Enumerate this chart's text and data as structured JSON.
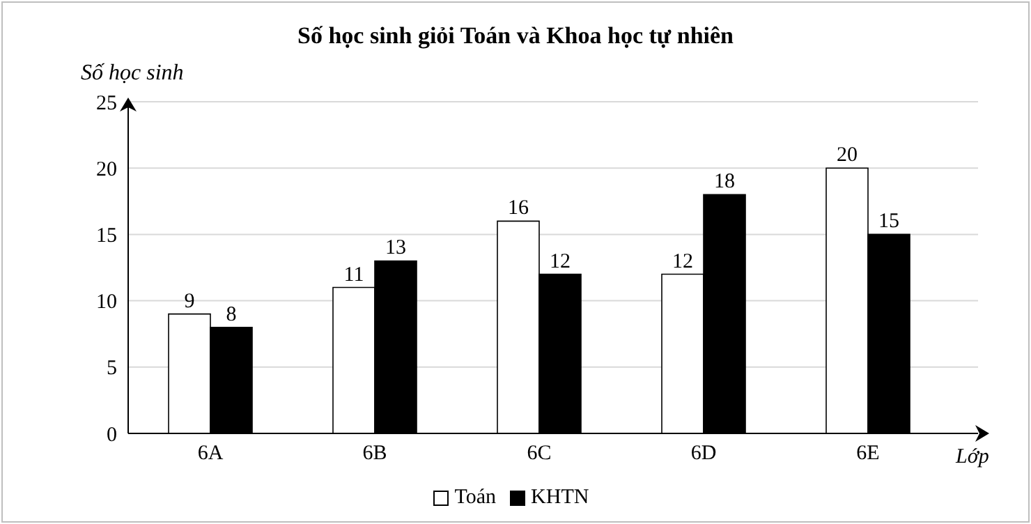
{
  "chart_data": {
    "type": "bar",
    "title": "Số học sinh giỏi Toán và Khoa học tự nhiên",
    "xlabel": "Lớp",
    "ylabel": "Số học sinh",
    "categories": [
      "6A",
      "6B",
      "6C",
      "6D",
      "6E"
    ],
    "series": [
      {
        "name": "Toán",
        "color": "#ffffff",
        "values": [
          9,
          11,
          16,
          12,
          20
        ]
      },
      {
        "name": "KHTN",
        "color": "#000000",
        "values": [
          8,
          13,
          12,
          18,
          15
        ]
      }
    ],
    "ylim": [
      0,
      25
    ],
    "yticks": [
      0,
      5,
      10,
      15,
      20,
      25
    ],
    "grid": "y",
    "legend": "bottom",
    "data_labels": true
  }
}
